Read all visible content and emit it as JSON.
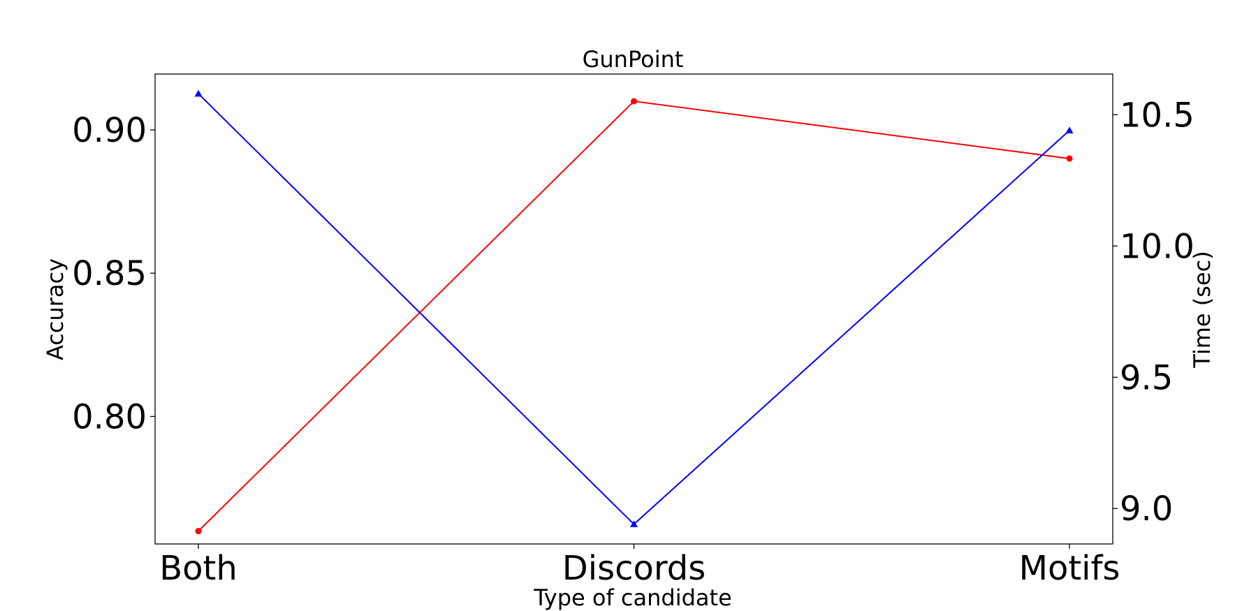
{
  "chart_data": {
    "type": "line",
    "title": "GunPoint",
    "xlabel": "Type of candidate",
    "ylabel_left": "Accuracy",
    "ylabel_right": "Time (sec)",
    "categories": [
      "Both",
      "Discords",
      "Motifs"
    ],
    "y_left": {
      "ticks": [
        "0.80",
        "0.85",
        "0.90"
      ],
      "ylim": [
        0.7555,
        0.9195
      ]
    },
    "y_right": {
      "ticks": [
        "9.0",
        "9.5",
        "10.0",
        "10.5"
      ],
      "ylim": [
        8.865,
        10.655
      ]
    },
    "grid": false,
    "legend": "none",
    "series": [
      {
        "axis": "left",
        "color": "#ff0000",
        "marker": "circle",
        "values": [
          0.76,
          0.91,
          0.89
        ]
      },
      {
        "axis": "right",
        "color": "#0000ff",
        "marker": "triangle",
        "values": [
          10.58,
          8.94,
          10.44
        ]
      }
    ]
  }
}
